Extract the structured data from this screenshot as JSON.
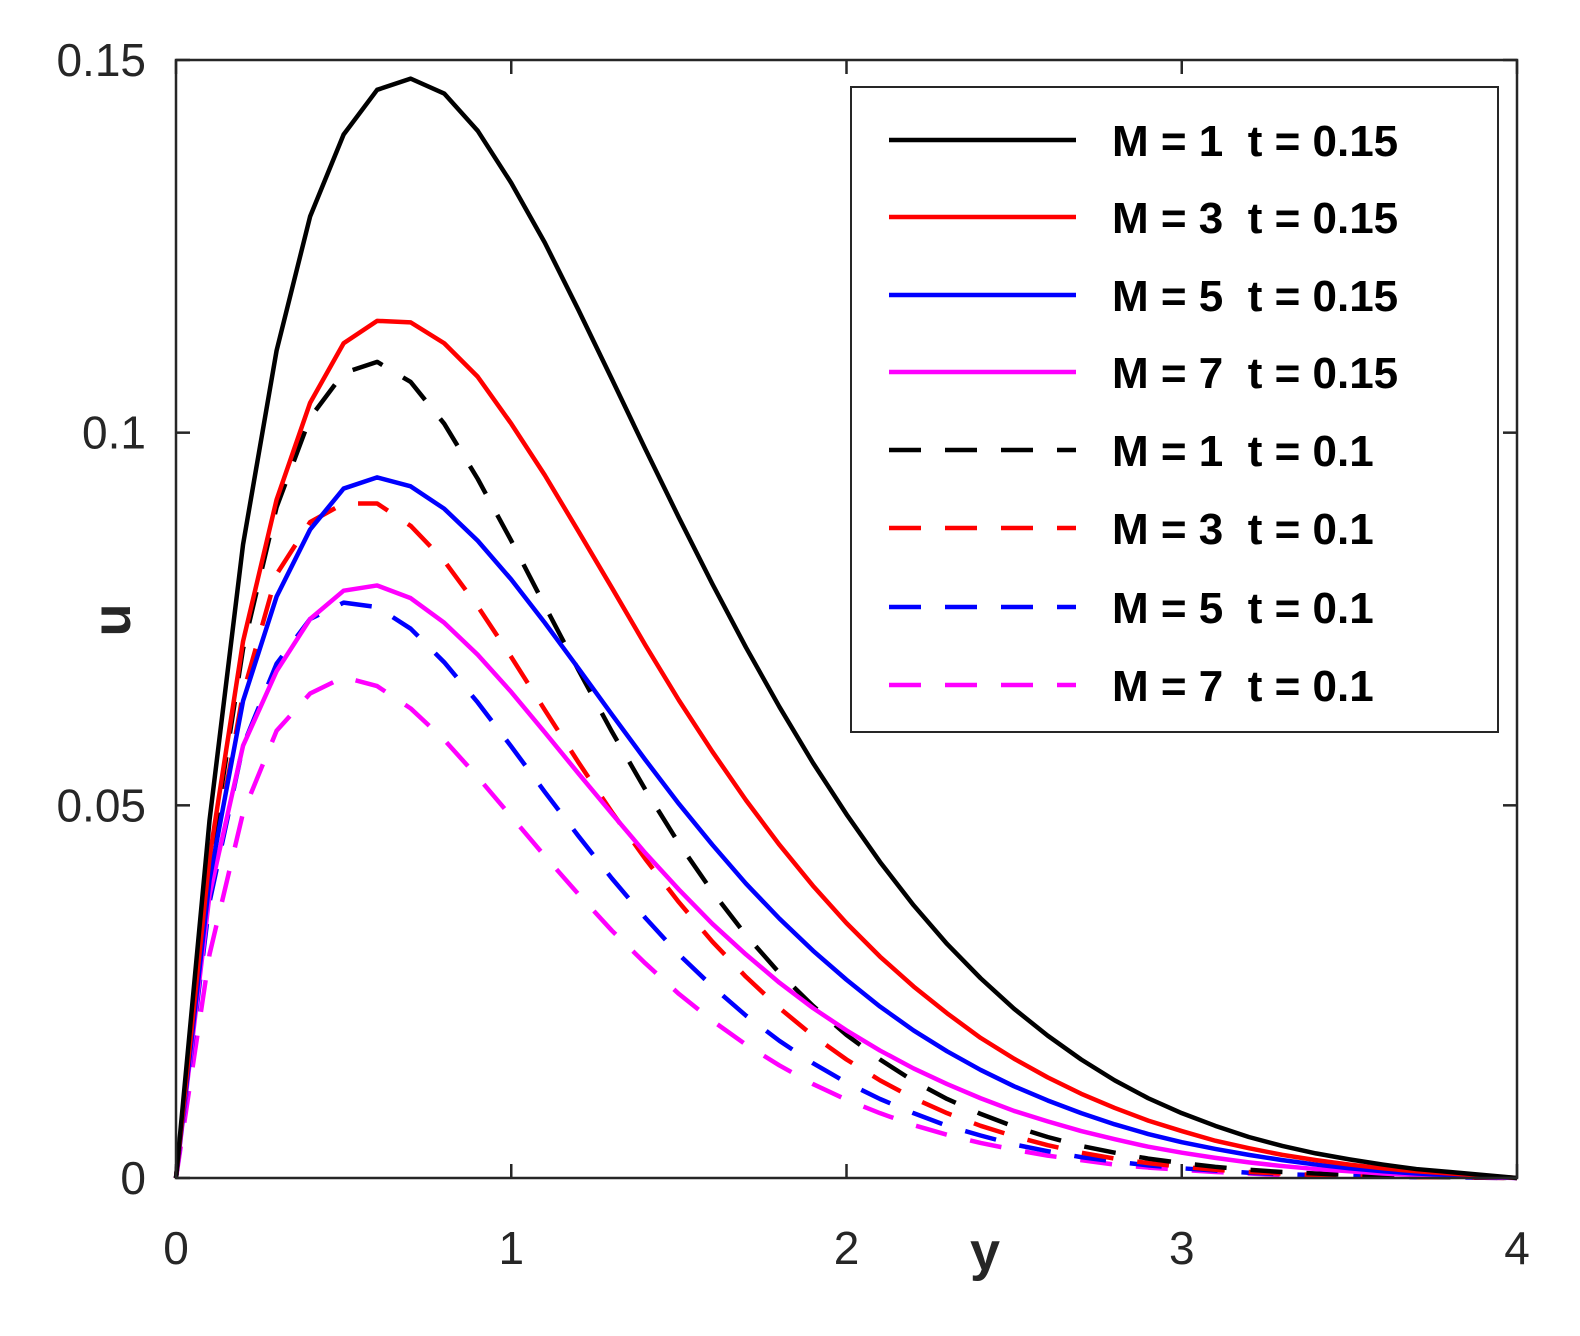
{
  "chart_data": {
    "type": "line",
    "title": "",
    "xlabel": "y",
    "ylabel": "u",
    "xlim": [
      0,
      4
    ],
    "ylim": [
      0,
      0.15
    ],
    "xticks": [
      0,
      1,
      2,
      3,
      4
    ],
    "xtick_labels": [
      "0",
      "1",
      "2",
      "3",
      "4"
    ],
    "yticks": [
      0,
      0.05,
      0.1,
      0.15
    ],
    "ytick_labels": [
      "0",
      "0.05",
      "0.1",
      "0.15"
    ],
    "grid": false,
    "legend_position": "top-right",
    "x": [
      0,
      0.1,
      0.2,
      0.3,
      0.4,
      0.5,
      0.6,
      0.7,
      0.8,
      0.9,
      1.0,
      1.1,
      1.2,
      1.3,
      1.4,
      1.5,
      1.6,
      1.7,
      1.8,
      1.9,
      2.0,
      2.1,
      2.2,
      2.3,
      2.4,
      2.5,
      2.6,
      2.7,
      2.8,
      2.9,
      3.0,
      3.1,
      3.2,
      3.3,
      3.4,
      3.5,
      3.6,
      3.7,
      3.8,
      3.9,
      4.0
    ],
    "series": [
      {
        "name": "M = 1  t = 0.15",
        "color": "#000000",
        "dash": "solid",
        "values": [
          0,
          0.048,
          0.085,
          0.111,
          0.129,
          0.14,
          0.146,
          0.1475,
          0.1455,
          0.1405,
          0.1335,
          0.1255,
          0.1165,
          0.1072,
          0.0978,
          0.0886,
          0.0797,
          0.0712,
          0.0632,
          0.0557,
          0.0488,
          0.0424,
          0.0366,
          0.0314,
          0.0268,
          0.0227,
          0.0191,
          0.0159,
          0.0131,
          0.0107,
          0.0087,
          0.007,
          0.0055,
          0.0043,
          0.0033,
          0.0025,
          0.0018,
          0.0012,
          0.0008,
          0.0004,
          0
        ]
      },
      {
        "name": "M = 3  t = 0.15",
        "color": "#ff0000",
        "dash": "solid",
        "values": [
          0,
          0.043,
          0.072,
          0.091,
          0.104,
          0.112,
          0.115,
          0.1148,
          0.112,
          0.1075,
          0.1012,
          0.0943,
          0.0868,
          0.0792,
          0.0715,
          0.0641,
          0.0572,
          0.0507,
          0.0447,
          0.0392,
          0.0342,
          0.0297,
          0.0257,
          0.0221,
          0.0188,
          0.016,
          0.0135,
          0.0113,
          0.0094,
          0.0077,
          0.0063,
          0.005,
          0.004,
          0.0031,
          0.0024,
          0.0018,
          0.0013,
          0.0009,
          0.0006,
          0.0003,
          0
        ]
      },
      {
        "name": "M = 5  t = 0.15",
        "color": "#0000ff",
        "dash": "solid",
        "values": [
          0,
          0.04,
          0.064,
          0.078,
          0.087,
          0.0925,
          0.094,
          0.0928,
          0.0898,
          0.0855,
          0.0803,
          0.0745,
          0.0684,
          0.0622,
          0.0561,
          0.0502,
          0.0447,
          0.0395,
          0.0348,
          0.0305,
          0.0266,
          0.023,
          0.0198,
          0.017,
          0.0145,
          0.0123,
          0.0104,
          0.0087,
          0.0072,
          0.0059,
          0.0048,
          0.0039,
          0.0031,
          0.0024,
          0.0018,
          0.0013,
          0.0009,
          0.0006,
          0.0004,
          0.0002,
          0
        ]
      },
      {
        "name": "M = 7  t = 0.15",
        "color": "#ff00ff",
        "dash": "solid",
        "values": [
          0,
          0.038,
          0.058,
          0.068,
          0.075,
          0.0788,
          0.0795,
          0.0778,
          0.0745,
          0.0702,
          0.0652,
          0.0598,
          0.0543,
          0.0489,
          0.0436,
          0.0387,
          0.0341,
          0.03,
          0.0262,
          0.0228,
          0.0198,
          0.0171,
          0.0147,
          0.0126,
          0.0107,
          0.009,
          0.0076,
          0.0063,
          0.0052,
          0.0042,
          0.0034,
          0.0027,
          0.0021,
          0.0016,
          0.0012,
          0.0009,
          0.0006,
          0.0004,
          0.0002,
          0.0001,
          0
        ]
      },
      {
        "name": "M = 1  t = 0.1",
        "color": "#000000",
        "dash": "dashed",
        "values": [
          0,
          0.042,
          0.071,
          0.09,
          0.102,
          0.108,
          0.1095,
          0.1068,
          0.1012,
          0.0938,
          0.0855,
          0.0768,
          0.0682,
          0.0599,
          0.0521,
          0.0449,
          0.0384,
          0.0326,
          0.0275,
          0.0231,
          0.0192,
          0.0159,
          0.013,
          0.0106,
          0.0086,
          0.0069,
          0.0055,
          0.0043,
          0.0034,
          0.0026,
          0.002,
          0.0015,
          0.0011,
          0.0008,
          0.0006,
          0.0004,
          0.0003,
          0.0002,
          0.0001,
          5e-05,
          0
        ]
      },
      {
        "name": "M = 3  t = 0.1",
        "color": "#ff0000",
        "dash": "dashed",
        "values": [
          0,
          0.04,
          0.065,
          0.081,
          0.088,
          0.0905,
          0.0905,
          0.0875,
          0.0828,
          0.0767,
          0.0699,
          0.0628,
          0.0558,
          0.0491,
          0.0428,
          0.037,
          0.0317,
          0.027,
          0.0228,
          0.0191,
          0.0159,
          0.0131,
          0.0107,
          0.0087,
          0.007,
          0.0056,
          0.0044,
          0.0034,
          0.0026,
          0.002,
          0.0015,
          0.0011,
          0.0008,
          0.0006,
          0.0004,
          0.0003,
          0.0002,
          0.0001,
          0.0001,
          3e-05,
          0
        ]
      },
      {
        "name": "M = 5  t = 0.1",
        "color": "#0000ff",
        "dash": "dashed",
        "values": [
          0,
          0.037,
          0.058,
          0.069,
          0.075,
          0.0772,
          0.0766,
          0.0737,
          0.0692,
          0.0638,
          0.0579,
          0.0518,
          0.0459,
          0.0402,
          0.0349,
          0.03,
          0.0257,
          0.0218,
          0.0184,
          0.0154,
          0.0128,
          0.0106,
          0.0087,
          0.007,
          0.0057,
          0.0045,
          0.0036,
          0.0028,
          0.0022,
          0.0017,
          0.0013,
          0.001,
          0.0007,
          0.0005,
          0.0004,
          0.0003,
          0.0002,
          0.0001,
          0.0001,
          3e-05,
          0
        ]
      },
      {
        "name": "M = 7  t = 0.1",
        "color": "#ff00ff",
        "dash": "dashed",
        "values": [
          0,
          0.03,
          0.049,
          0.06,
          0.065,
          0.0672,
          0.066,
          0.063,
          0.0588,
          0.0538,
          0.0485,
          0.0432,
          0.0381,
          0.0332,
          0.0288,
          0.0247,
          0.0211,
          0.0179,
          0.0151,
          0.0126,
          0.0105,
          0.0087,
          0.0071,
          0.0058,
          0.0047,
          0.0038,
          0.003,
          0.0024,
          0.0018,
          0.0014,
          0.0011,
          0.0008,
          0.0006,
          0.0004,
          0.0003,
          0.0002,
          0.0002,
          0.0001,
          0.0001,
          3e-05,
          0
        ]
      }
    ]
  }
}
